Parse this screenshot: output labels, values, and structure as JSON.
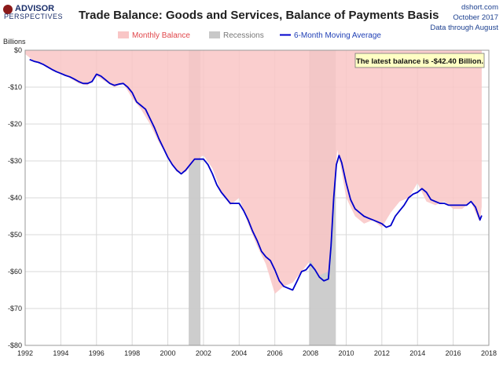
{
  "header": {
    "logo_line1": "ADVISOR",
    "logo_line2": "PERSPECTIVES",
    "title": "Trade Balance: Goods and Services, Balance of Payments Basis",
    "source": "dshort.com",
    "date": "October 2017",
    "data_note": "Data through August"
  },
  "chart_data": {
    "type": "area",
    "title": "Trade Balance: Goods and Services, Balance of Payments Basis",
    "ylabel": "Billions",
    "xlabel": "",
    "ylim": [
      -80,
      0
    ],
    "xlim": [
      1992,
      2018
    ],
    "y_ticks": [
      "$0",
      "-$10",
      "-$20",
      "-$30",
      "-$40",
      "-$50",
      "-$60",
      "-$70",
      "-$80"
    ],
    "y_tick_values": [
      0,
      -10,
      -20,
      -30,
      -40,
      -50,
      -60,
      -70,
      -80
    ],
    "x_ticks": [
      "1992",
      "1994",
      "1996",
      "1998",
      "2000",
      "2002",
      "2004",
      "2006",
      "2008",
      "2010",
      "2012",
      "2014",
      "2016",
      "2018"
    ],
    "x_tick_values": [
      1992,
      1994,
      1996,
      1998,
      2000,
      2002,
      2004,
      2006,
      2008,
      2010,
      2012,
      2014,
      2016,
      2018
    ],
    "grid": true,
    "legend": [
      "Monthly Balance",
      "Recessions",
      "6-Month Moving Average"
    ],
    "legend_position": "top",
    "colors": {
      "monthly_balance": "#f9c6c6",
      "recessions": "#c8c8c8",
      "moving_average": "#0000cc",
      "annotation_bg": "#ffffc4"
    },
    "recessions": [
      [
        2001.17,
        2001.83
      ],
      [
        2007.92,
        2009.42
      ]
    ],
    "annotation": "The latest balance is -$42.40 Billion.",
    "series": [
      {
        "name": "Monthly Balance",
        "x": [
          1992.0,
          1992.5,
          1993.0,
          1993.5,
          1994.0,
          1994.5,
          1995.0,
          1995.5,
          1996.0,
          1996.5,
          1997.0,
          1997.5,
          1998.0,
          1998.5,
          1999.0,
          1999.5,
          2000.0,
          2000.5,
          2001.0,
          2001.5,
          2002.0,
          2002.5,
          2003.0,
          2003.5,
          2004.0,
          2004.5,
          2005.0,
          2005.5,
          2006.0,
          2006.5,
          2007.0,
          2007.5,
          2008.0,
          2008.5,
          2009.0,
          2009.25,
          2009.5,
          2009.75,
          2010.0,
          2010.5,
          2011.0,
          2011.5,
          2012.0,
          2012.5,
          2013.0,
          2013.5,
          2014.0,
          2014.5,
          2015.0,
          2015.5,
          2016.0,
          2016.5,
          2017.0,
          2017.25,
          2017.5,
          2017.6
        ],
        "values": [
          -1.0,
          -3.0,
          -4.0,
          -5.5,
          -6.5,
          -7.5,
          -9.0,
          -9.5,
          -7.0,
          -8.5,
          -10.0,
          -9.0,
          -13.0,
          -16.0,
          -20.0,
          -25.0,
          -29.0,
          -33.0,
          -33.0,
          -30.0,
          -28.5,
          -32.0,
          -38.5,
          -42.0,
          -40.0,
          -47.0,
          -53.0,
          -58.0,
          -66.0,
          -64.0,
          -63.0,
          -60.0,
          -57.0,
          -61.0,
          -60.0,
          -42.0,
          -27.0,
          -33.0,
          -40.0,
          -45.0,
          -47.0,
          -46.0,
          -48.0,
          -44.0,
          -41.0,
          -40.0,
          -36.0,
          -41.0,
          -42.0,
          -41.0,
          -43.0,
          -43.0,
          -41.0,
          -44.0,
          -46.5,
          -42.4
        ]
      },
      {
        "name": "6-Month Moving Average",
        "x": [
          1992.25,
          1992.5,
          1992.75,
          1993.0,
          1993.25,
          1993.5,
          1993.75,
          1994.0,
          1994.25,
          1994.5,
          1994.75,
          1995.0,
          1995.25,
          1995.5,
          1995.75,
          1996.0,
          1996.25,
          1996.5,
          1996.75,
          1997.0,
          1997.25,
          1997.5,
          1997.75,
          1998.0,
          1998.25,
          1998.5,
          1998.75,
          1999.0,
          1999.25,
          1999.5,
          1999.75,
          2000.0,
          2000.25,
          2000.5,
          2000.75,
          2001.0,
          2001.25,
          2001.5,
          2001.75,
          2002.0,
          2002.25,
          2002.5,
          2002.75,
          2003.0,
          2003.25,
          2003.5,
          2003.75,
          2004.0,
          2004.25,
          2004.5,
          2004.75,
          2005.0,
          2005.25,
          2005.5,
          2005.75,
          2006.0,
          2006.25,
          2006.5,
          2006.75,
          2007.0,
          2007.25,
          2007.5,
          2007.75,
          2008.0,
          2008.25,
          2008.5,
          2008.75,
          2009.0,
          2009.15,
          2009.3,
          2009.45,
          2009.6,
          2009.75,
          2010.0,
          2010.25,
          2010.5,
          2010.75,
          2011.0,
          2011.25,
          2011.5,
          2011.75,
          2012.0,
          2012.25,
          2012.5,
          2012.75,
          2013.0,
          2013.25,
          2013.5,
          2013.75,
          2014.0,
          2014.25,
          2014.5,
          2014.75,
          2015.0,
          2015.25,
          2015.5,
          2015.75,
          2016.0,
          2016.25,
          2016.5,
          2016.75,
          2017.0,
          2017.25,
          2017.5,
          2017.6
        ],
        "values": [
          -2.5,
          -3.0,
          -3.3,
          -3.8,
          -4.5,
          -5.2,
          -5.8,
          -6.3,
          -6.8,
          -7.2,
          -7.8,
          -8.5,
          -9.0,
          -9.0,
          -8.5,
          -6.5,
          -7.0,
          -8.0,
          -9.0,
          -9.5,
          -9.2,
          -9.0,
          -10.0,
          -11.5,
          -14.0,
          -15.0,
          -16.0,
          -18.5,
          -21.0,
          -24.0,
          -26.5,
          -29.0,
          -31.0,
          -32.5,
          -33.5,
          -32.5,
          -31.0,
          -29.5,
          -29.5,
          -29.5,
          -31.0,
          -33.5,
          -36.5,
          -38.5,
          -40.0,
          -41.5,
          -41.5,
          -41.5,
          -43.5,
          -46.0,
          -49.0,
          -51.5,
          -54.5,
          -56.0,
          -57.0,
          -59.5,
          -62.5,
          -64.0,
          -64.5,
          -65.0,
          -62.5,
          -60.0,
          -59.5,
          -58.0,
          -59.5,
          -61.5,
          -62.5,
          -62.0,
          -53.0,
          -40.0,
          -31.0,
          -28.5,
          -30.5,
          -36.0,
          -40.5,
          -43.0,
          -44.0,
          -45.0,
          -45.5,
          -46.0,
          -46.5,
          -47.0,
          -48.0,
          -47.5,
          -45.0,
          -43.5,
          -42.0,
          -40.0,
          -39.0,
          -38.5,
          -37.5,
          -38.5,
          -40.5,
          -41.0,
          -41.5,
          -41.5,
          -42.0,
          -42.0,
          -42.0,
          -42.0,
          -42.0,
          -41.0,
          -42.5,
          -46.0,
          -44.8
        ]
      }
    ]
  }
}
